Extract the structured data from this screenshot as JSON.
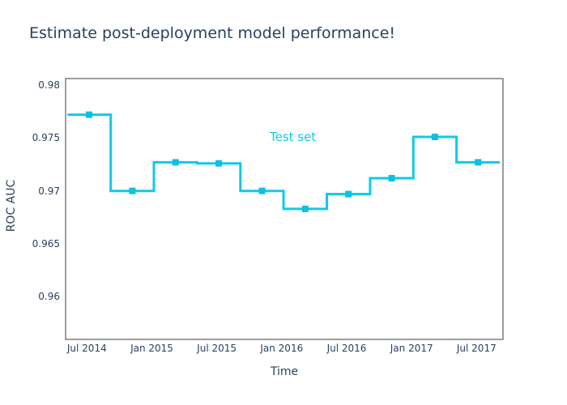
{
  "colors": {
    "line": "#11c9e8",
    "marker": "#0cc0e0",
    "text": "#2a3f5f",
    "axis_line": "#656a6f",
    "background": "#ffffff"
  },
  "chart_data": {
    "type": "line",
    "line_shape": "step-mid",
    "title": "Estimate post-deployment model performance!",
    "xlabel": "Time",
    "ylabel": "ROC AUC",
    "annotation": "Test set",
    "grid": false,
    "legend_position": "none",
    "marker_shape": "square",
    "x_tick_labels": [
      "Jul 2014",
      "Jan 2015",
      "Jul 2015",
      "Jan 2016",
      "Jul 2016",
      "Jan 2017",
      "Jul 2017"
    ],
    "y_tick_labels": [
      "0.98",
      "0.975",
      "0.97",
      "0.965",
      "0.96"
    ],
    "ylim": [
      0.956,
      0.9806
    ],
    "xlim": [
      "2014-05",
      "2017-09"
    ],
    "categories": [
      "2014-07",
      "2014-11",
      "2015-03",
      "2015-07",
      "2015-11",
      "2016-03",
      "2016-07",
      "2016-11",
      "2017-03",
      "2017-07"
    ],
    "series": [
      {
        "name": "Test set",
        "values": [
          0.9772,
          0.97,
          0.9727,
          0.9726,
          0.97,
          0.9683,
          0.9697,
          0.9712,
          0.9751,
          0.9727
        ]
      }
    ]
  }
}
